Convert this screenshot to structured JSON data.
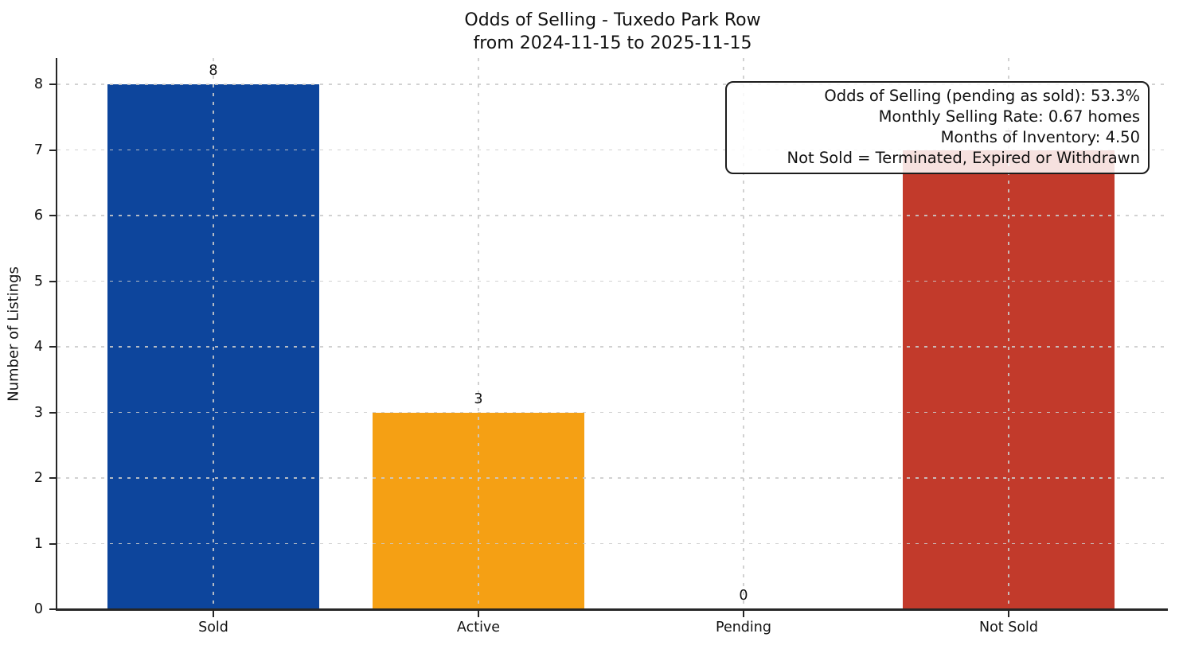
{
  "chart_data": {
    "type": "bar",
    "title": "Odds of Selling - Tuxedo Park Row",
    "subtitle": "from 2024-11-15 to 2025-11-15",
    "categories": [
      "Sold",
      "Active",
      "Pending",
      "Not Sold"
    ],
    "values": [
      8,
      3,
      0,
      7
    ],
    "bar_value_labels": [
      "8",
      "3",
      "0",
      "7"
    ],
    "bar_colors": [
      "#0d459c",
      "#f5a014",
      "#999999",
      "#c23a2b"
    ],
    "xlabel": "",
    "ylabel": "Number of Listings",
    "ylim": [
      0,
      8.4
    ],
    "yticks": [
      0,
      1,
      2,
      3,
      4,
      5,
      6,
      7,
      8
    ],
    "grid": true,
    "grid_style": "dashed",
    "legend": null,
    "annotation": {
      "position": "top-right",
      "lines": [
        "Odds of Selling (pending as sold): 53.3%",
        "Monthly Selling Rate: 0.67 homes",
        "Months of Inventory: 4.50",
        "Not Sold = Terminated, Expired or Withdrawn"
      ]
    }
  }
}
